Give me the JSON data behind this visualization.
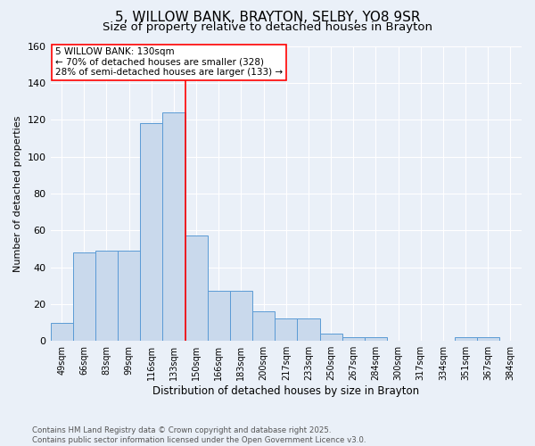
{
  "title": "5, WILLOW BANK, BRAYTON, SELBY, YO8 9SR",
  "subtitle": "Size of property relative to detached houses in Brayton",
  "xlabel": "Distribution of detached houses by size in Brayton",
  "ylabel": "Number of detached properties",
  "bin_labels": [
    "49sqm",
    "66sqm",
    "83sqm",
    "99sqm",
    "116sqm",
    "133sqm",
    "150sqm",
    "166sqm",
    "183sqm",
    "200sqm",
    "217sqm",
    "233sqm",
    "250sqm",
    "267sqm",
    "284sqm",
    "300sqm",
    "317sqm",
    "334sqm",
    "351sqm",
    "367sqm",
    "384sqm"
  ],
  "bar_values": [
    10,
    48,
    49,
    49,
    118,
    124,
    57,
    27,
    27,
    16,
    12,
    12,
    4,
    2,
    2,
    0,
    0,
    0,
    2,
    2,
    0
  ],
  "bar_color": "#c9d9ec",
  "bar_edge_color": "#5b9bd5",
  "red_line_index": 5,
  "annotation_text": "5 WILLOW BANK: 130sqm\n← 70% of detached houses are smaller (328)\n28% of semi-detached houses are larger (133) →",
  "annotation_box_color": "white",
  "annotation_box_edge": "red",
  "ylim": [
    0,
    160
  ],
  "yticks": [
    0,
    20,
    40,
    60,
    80,
    100,
    120,
    140,
    160
  ],
  "footer_line1": "Contains HM Land Registry data © Crown copyright and database right 2025.",
  "footer_line2": "Contains public sector information licensed under the Open Government Licence v3.0.",
  "bg_color": "#eaf0f8",
  "plot_bg_color": "#eaf0f8",
  "grid_color": "white",
  "title_fontsize": 11,
  "subtitle_fontsize": 9.5
}
